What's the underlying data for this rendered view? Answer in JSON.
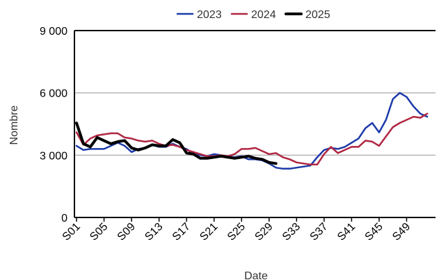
{
  "chart_data": {
    "type": "line",
    "xlabel": "Date",
    "ylabel": "Nombre",
    "ylim": [
      0,
      9000
    ],
    "yticks": [
      0,
      3000,
      6000,
      9000
    ],
    "ytick_labels": [
      "0",
      "3 000",
      "6 000",
      "9 000"
    ],
    "xtick_labels": [
      "S01",
      "S05",
      "S09",
      "S13",
      "S17",
      "S21",
      "S25",
      "S29",
      "S33",
      "S37",
      "S41",
      "S45",
      "S49"
    ],
    "xtick_weeks": [
      1,
      5,
      9,
      13,
      17,
      21,
      25,
      29,
      33,
      37,
      41,
      45,
      49
    ],
    "x_range": [
      1,
      53
    ],
    "grid": "horizontal",
    "legend_position": "top",
    "series": [
      {
        "name": "2023",
        "color": "#1c3aa9",
        "width": 2.5,
        "values": [
          3450,
          3250,
          3300,
          3300,
          3300,
          3450,
          3600,
          3450,
          3150,
          3300,
          3350,
          3500,
          3400,
          3400,
          3550,
          3400,
          3300,
          3050,
          3000,
          2950,
          3050,
          3000,
          2950,
          2900,
          2950,
          2800,
          2800,
          2750,
          2600,
          2400,
          2350,
          2350,
          2400,
          2450,
          2500,
          2900,
          3250,
          3350,
          3300,
          3400,
          3600,
          3800,
          4300,
          4550,
          4100,
          4700,
          5700,
          6000,
          5800,
          5350,
          5000,
          4850
        ]
      },
      {
        "name": "2024",
        "color": "#b02641",
        "width": 2.5,
        "values": [
          4100,
          3500,
          3800,
          3950,
          4000,
          4050,
          4050,
          3850,
          3800,
          3700,
          3650,
          3700,
          3550,
          3450,
          3500,
          3400,
          3250,
          3150,
          3050,
          2950,
          2950,
          3000,
          2950,
          3050,
          3300,
          3300,
          3350,
          3200,
          3050,
          3100,
          2900,
          2800,
          2650,
          2600,
          2550,
          2550,
          3050,
          3400,
          3100,
          3250,
          3400,
          3400,
          3700,
          3650,
          3450,
          3900,
          4350,
          4550,
          4700,
          4850,
          4800,
          5000
        ]
      },
      {
        "name": "2025",
        "color": "#000000",
        "width": 4,
        "values": [
          4550,
          3550,
          3400,
          3850,
          3700,
          3550,
          3650,
          3700,
          3350,
          3250,
          3350,
          3500,
          3450,
          3450,
          3750,
          3600,
          3100,
          3050,
          2850,
          2850,
          2900,
          2950,
          2900,
          2850,
          2900,
          2950,
          2850,
          2800,
          2650,
          2600
        ]
      }
    ]
  }
}
